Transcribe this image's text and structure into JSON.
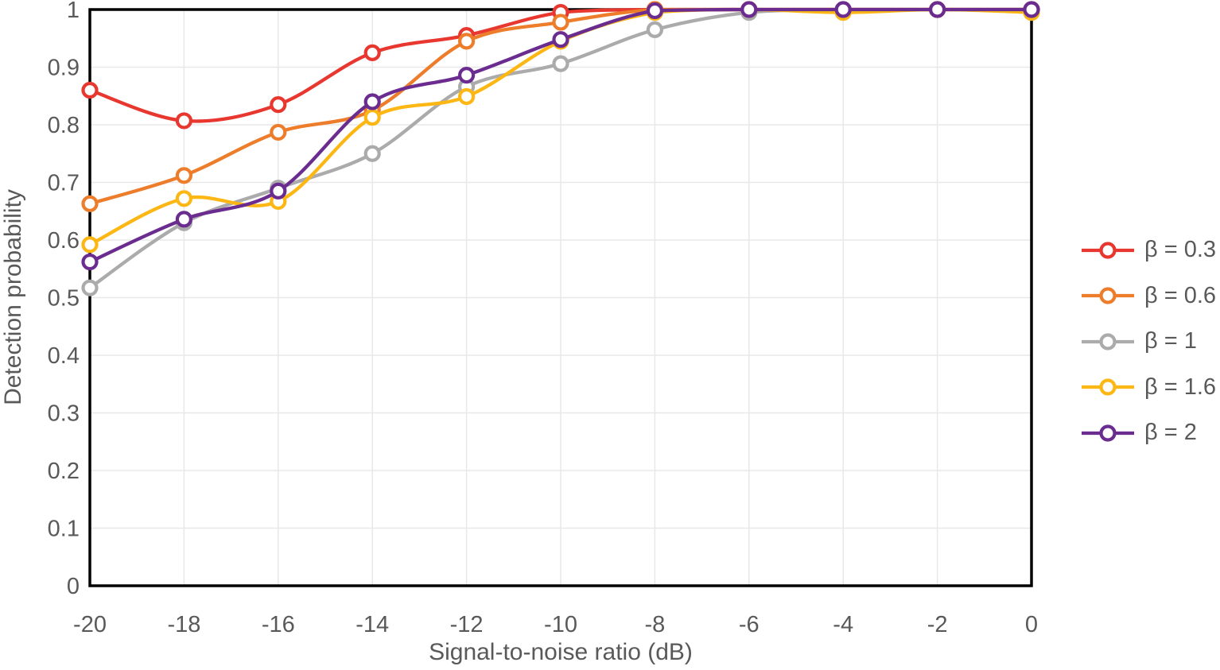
{
  "figure": {
    "background_color": "#ffffff",
    "text_color": "#595959",
    "grid_color": "#e8e8e8",
    "border_color": "#000000"
  },
  "chart_data": {
    "type": "line",
    "title": "",
    "xlabel": "Signal-to-noise ratio (dB)",
    "ylabel": "Detection probability",
    "x": [
      -20,
      -18,
      -16,
      -14,
      -12,
      -10,
      -8,
      -6,
      -4,
      -2,
      0
    ],
    "x_tick_labels": [
      "-20",
      "-18",
      "-16",
      "-14",
      "-12",
      "-10",
      "-8",
      "-6",
      "-4",
      "-2",
      "0"
    ],
    "y_ticks": [
      0,
      0.1,
      0.2,
      0.3,
      0.4,
      0.5,
      0.6,
      0.7,
      0.8,
      0.9,
      1
    ],
    "y_tick_labels": [
      "0",
      "0.1",
      "0.2",
      "0.3",
      "0.4",
      "0.5",
      "0.6",
      "0.7",
      "0.8",
      "0.9",
      "1"
    ],
    "xlim": [
      -20,
      0
    ],
    "ylim": [
      0,
      1
    ],
    "grid": true,
    "marker": "open-circle",
    "legend_position": "right-outside",
    "series": [
      {
        "name": "β = 0.3",
        "color": "#e8372f",
        "values": [
          0.86,
          0.807,
          0.835,
          0.925,
          0.955,
          0.995,
          1.0,
          1.0,
          1.0,
          1.0,
          1.0
        ]
      },
      {
        "name": "β = 0.6",
        "color": "#ed7d2b",
        "values": [
          0.663,
          0.712,
          0.787,
          0.825,
          0.945,
          0.978,
          1.0,
          1.0,
          1.0,
          1.0,
          1.0
        ]
      },
      {
        "name": "β = 1",
        "color": "#ababab",
        "values": [
          0.517,
          0.63,
          0.69,
          0.75,
          0.866,
          0.906,
          0.965,
          0.995,
          1.0,
          1.0,
          1.0
        ]
      },
      {
        "name": "β = 1.6",
        "color": "#fdb714",
        "values": [
          0.592,
          0.672,
          0.667,
          0.813,
          0.849,
          0.945,
          0.995,
          1.0,
          0.995,
          1.0,
          0.995
        ]
      },
      {
        "name": "β = 2",
        "color": "#6b2c90",
        "values": [
          0.562,
          0.636,
          0.685,
          0.84,
          0.886,
          0.948,
          0.998,
          1.0,
          1.0,
          1.0,
          1.0
        ]
      }
    ]
  }
}
